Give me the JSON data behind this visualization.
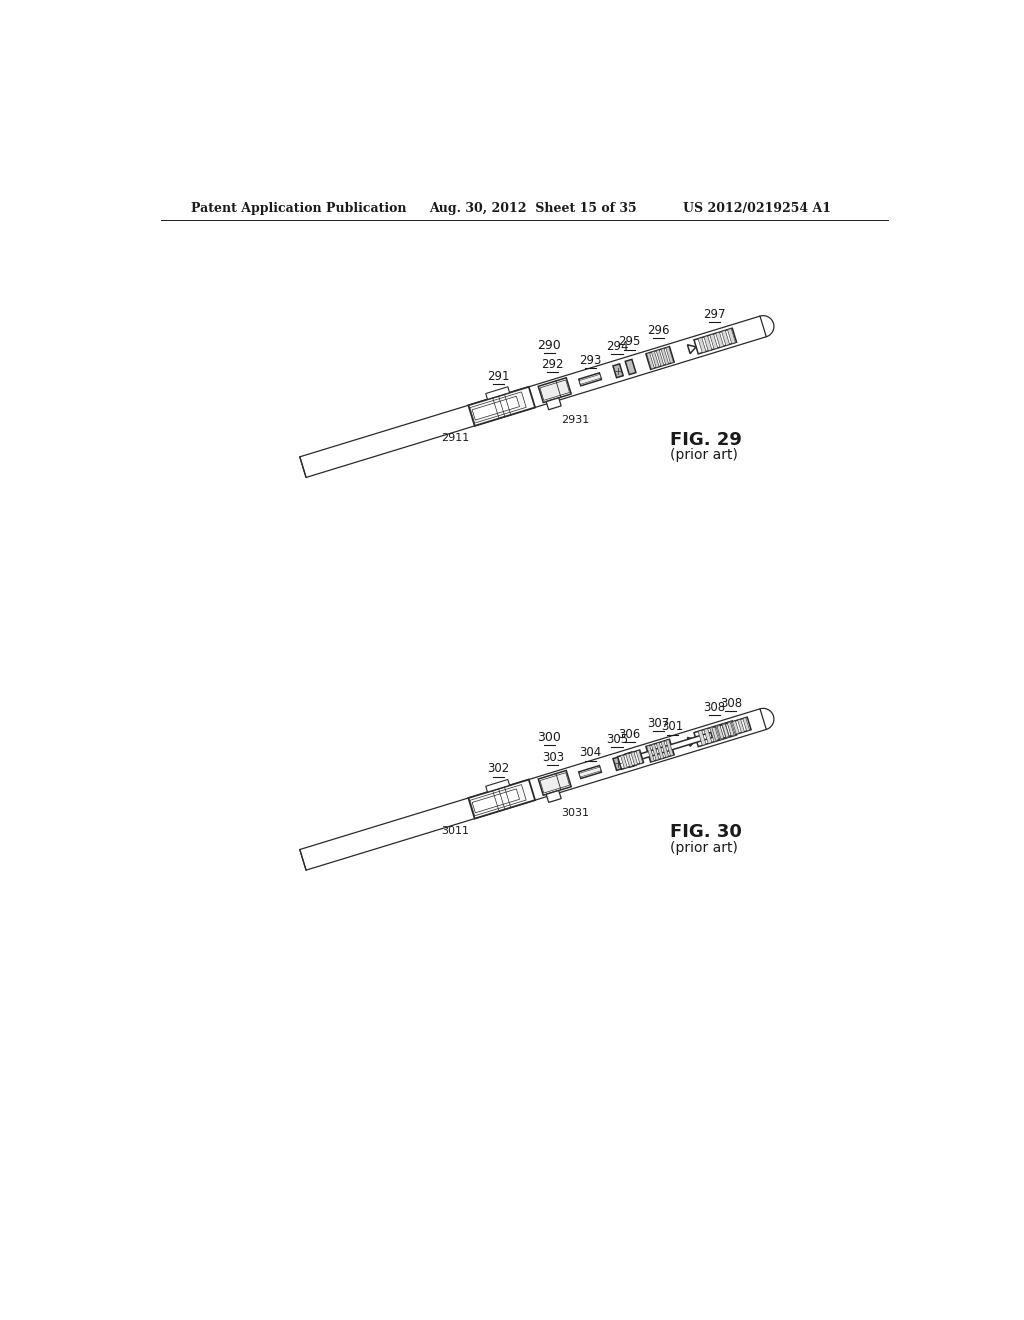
{
  "bg_color": "#ffffff",
  "header_left": "Patent Application Publication",
  "header_mid": "Aug. 30, 2012  Sheet 15 of 35",
  "header_right": "US 2012/0219254 A1",
  "text_color": "#1a1a1a",
  "line_color": "#2a2a2a",
  "fig29": {
    "label": "FIG. 29",
    "sub": "(prior art)",
    "overall": "290",
    "parts": [
      "297",
      "296",
      "295",
      "294",
      "293",
      "292",
      "291"
    ],
    "sub_labels": [
      "2931",
      "2911"
    ]
  },
  "fig30": {
    "label": "FIG. 30",
    "sub": "(prior art)",
    "overall": "300",
    "parts": [
      "308",
      "307",
      "306",
      "305",
      "304",
      "303",
      "302",
      "301"
    ],
    "sub_labels": [
      "3031",
      "3011"
    ]
  }
}
